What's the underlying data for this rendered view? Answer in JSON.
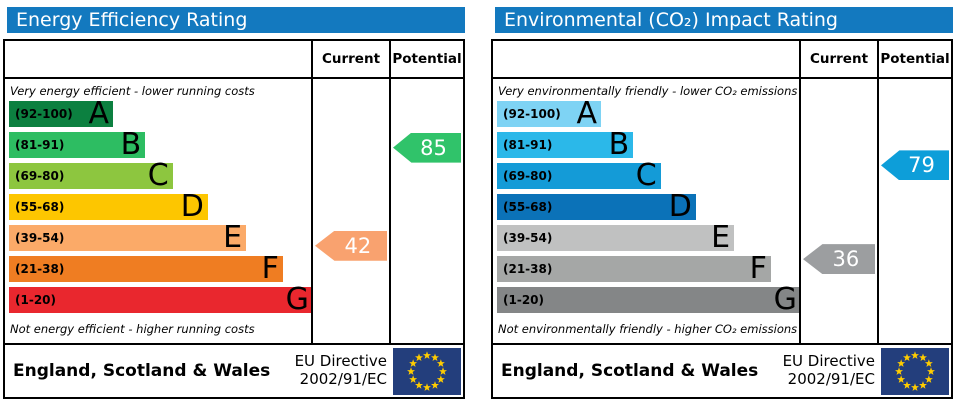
{
  "chart_data": [
    {
      "type": "epc-band-rating",
      "title": "Energy Efficiency Rating",
      "columns": {
        "current": "Current",
        "potential": "Potential"
      },
      "top_note": "Very energy efficient - lower running costs",
      "bottom_note": "Not energy efficient - higher running costs",
      "bands": [
        {
          "letter": "A",
          "label": "(92-100)",
          "min": 92,
          "max": 100,
          "color": "#0c8040",
          "width_pct": 34
        },
        {
          "letter": "B",
          "label": "(81-91)",
          "min": 81,
          "max": 91,
          "color": "#2dbd62",
          "width_pct": 44.5
        },
        {
          "letter": "C",
          "label": "(69-80)",
          "min": 69,
          "max": 80,
          "color": "#8dc63f",
          "width_pct": 53.5
        },
        {
          "letter": "D",
          "label": "(55-68)",
          "min": 55,
          "max": 68,
          "color": "#fdc600",
          "width_pct": 65
        },
        {
          "letter": "E",
          "label": "(39-54)",
          "min": 39,
          "max": 54,
          "color": "#fbaa68",
          "width_pct": 77.5
        },
        {
          "letter": "F",
          "label": "(21-38)",
          "min": 21,
          "max": 38,
          "color": "#ef7d22",
          "width_pct": 89.5
        },
        {
          "letter": "G",
          "label": "(1-20)",
          "min": 1,
          "max": 20,
          "color": "#e9272e",
          "width_pct": 99.3
        }
      ],
      "current": {
        "value": 42,
        "color": "#f9a26f"
      },
      "potential": {
        "value": 85,
        "color": "#30c36a"
      },
      "footer": {
        "region": "England, Scotland & Wales",
        "directive_line1": "EU Directive",
        "directive_line2": "2002/91/EC"
      }
    },
    {
      "type": "epc-band-rating",
      "title": "Environmental (CO₂) Impact Rating",
      "columns": {
        "current": "Current",
        "potential": "Potential"
      },
      "top_note": "Very environmentally friendly - lower CO₂ emissions",
      "bottom_note": "Not environmentally friendly - higher CO₂ emissions",
      "bands": [
        {
          "letter": "A",
          "label": "(92-100)",
          "min": 92,
          "max": 100,
          "color": "#7ed3f4",
          "width_pct": 34
        },
        {
          "letter": "B",
          "label": "(81-91)",
          "min": 81,
          "max": 91,
          "color": "#2bb8e9",
          "width_pct": 44.5
        },
        {
          "letter": "C",
          "label": "(69-80)",
          "min": 69,
          "max": 80,
          "color": "#149bd7",
          "width_pct": 53.5
        },
        {
          "letter": "D",
          "label": "(55-68)",
          "min": 55,
          "max": 68,
          "color": "#0b72b8",
          "width_pct": 65
        },
        {
          "letter": "E",
          "label": "(39-54)",
          "min": 39,
          "max": 54,
          "color": "#c0c1c1",
          "width_pct": 77.5
        },
        {
          "letter": "F",
          "label": "(21-38)",
          "min": 21,
          "max": 38,
          "color": "#a5a7a6",
          "width_pct": 89.5
        },
        {
          "letter": "G",
          "label": "(1-20)",
          "min": 1,
          "max": 20,
          "color": "#848687",
          "width_pct": 99.3
        }
      ],
      "current": {
        "value": 36,
        "color": "#9c9ea0"
      },
      "potential": {
        "value": 79,
        "color": "#0d9ed9"
      },
      "footer": {
        "region": "England, Scotland & Wales",
        "directive_line1": "EU Directive",
        "directive_line2": "2002/91/EC"
      }
    }
  ],
  "theme": {
    "header_bg": "#1379bf",
    "header_text": "#ffffff",
    "border": "#000000",
    "flag_bg": "#233e7c",
    "flag_stars": "#ffcc00"
  }
}
